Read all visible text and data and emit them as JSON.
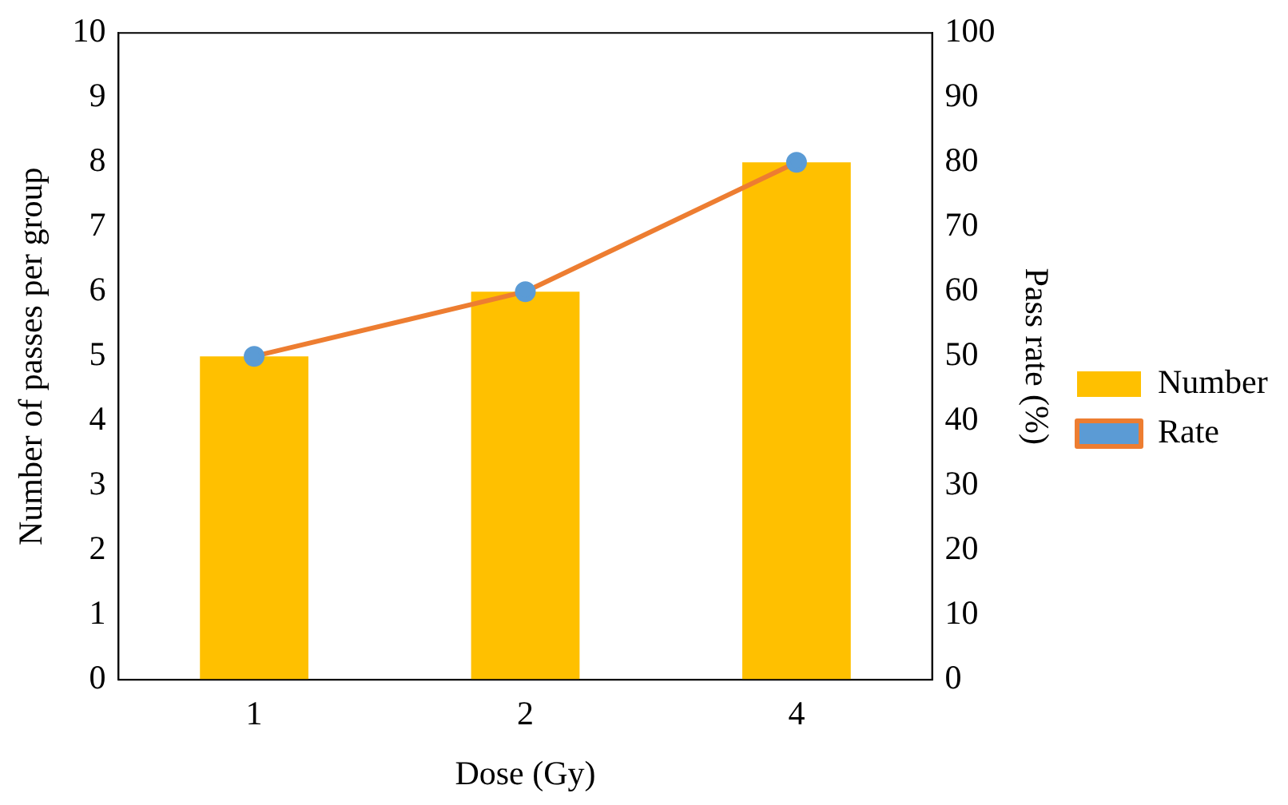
{
  "chart_data": {
    "type": "bar",
    "xlabel": "Dose (Gy)",
    "ylabel": "Number of passes per group",
    "y2label": "Pass rate (%)",
    "categories": [
      "1",
      "2",
      "4"
    ],
    "series": [
      {
        "name": "Number",
        "color": "#ffc000",
        "values": [
          5,
          6,
          8
        ]
      },
      {
        "name": "Rate",
        "type": "line",
        "axis": "y2",
        "color": "#ed7d31",
        "colors": [
          "#5b9bd5",
          "#5b9bd5",
          "#5b9bd5"
        ],
        "values": [
          50,
          60,
          80
        ]
      }
    ],
    "ylim": [
      0,
      10
    ],
    "yticks": [
      0,
      1,
      2,
      3,
      4,
      5,
      6,
      7,
      8,
      9,
      10
    ],
    "y2lim": [
      0,
      100
    ],
    "y2ticks": [
      0,
      10,
      20,
      30,
      40,
      50,
      60,
      70,
      80,
      90,
      100
    ],
    "grid": false,
    "legend": "right",
    "marker": "circle",
    "line_style": "solid"
  }
}
